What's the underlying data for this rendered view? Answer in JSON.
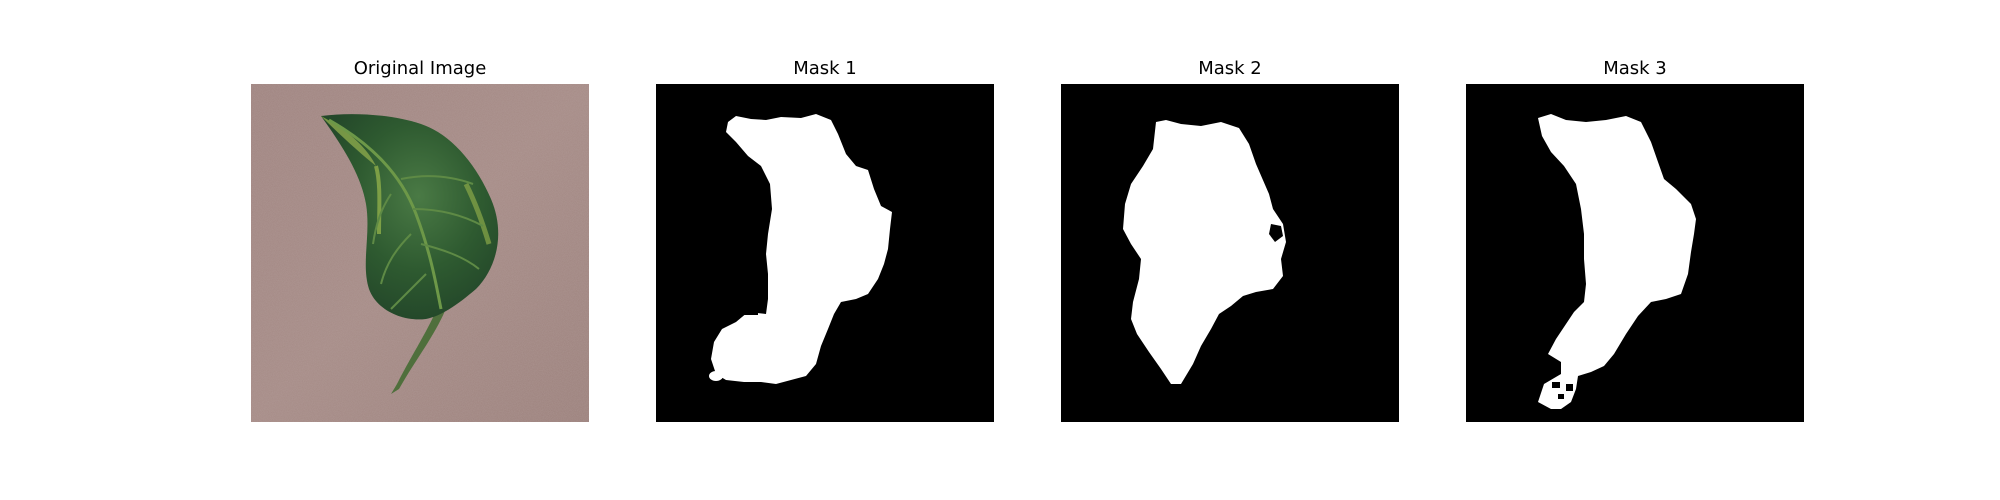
{
  "panels": [
    {
      "title": "Original Image"
    },
    {
      "title": "Mask 1"
    },
    {
      "title": "Mask 2"
    },
    {
      "title": "Mask 3"
    }
  ],
  "colors": {
    "background_surface": "#a08580",
    "leaf_dark": "#2f5a32",
    "leaf_mid": "#3f7040",
    "leaf_highlight": "#8fae4a",
    "mask_background": "#000000",
    "mask_foreground": "#ffffff"
  }
}
